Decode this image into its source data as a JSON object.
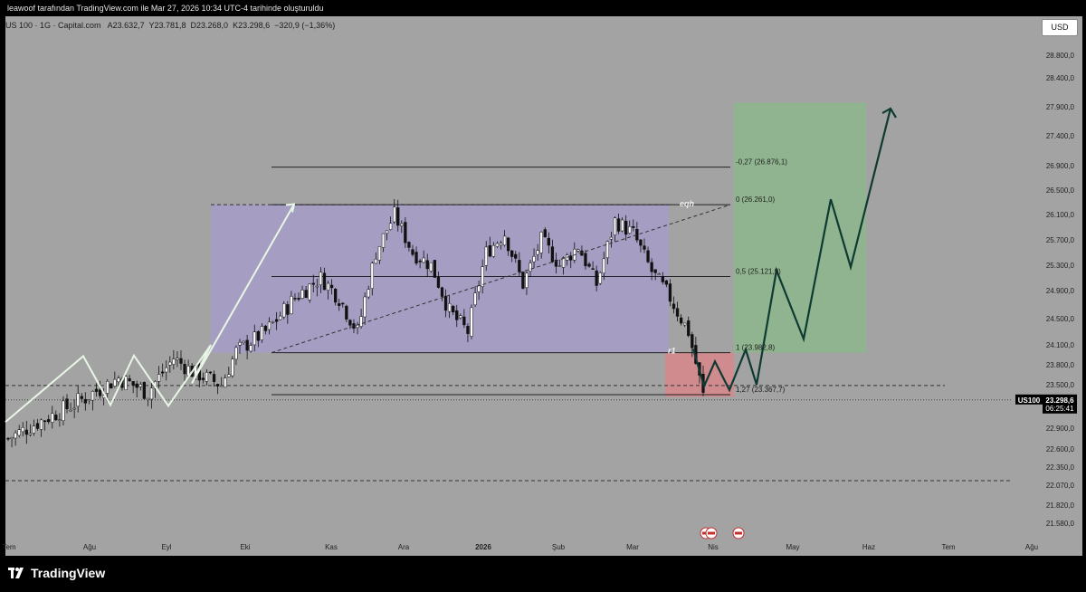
{
  "header": {
    "attribution": "leawoof tarafından TradingView.com ile Mar 27, 2026 10:34 UTC-4 tarihinde oluşturuldu"
  },
  "legend": {
    "symbol": "US 100 · 1G · Capital.com",
    "open": "A23.632,7",
    "high": "Y23.781,8",
    "low": "D23.268,0",
    "close": "K23.298,6",
    "change": "−320,9 (−1,36%)"
  },
  "currency_button": "USD",
  "price_label": {
    "symbol": "US100",
    "price": "23.298,6",
    "countdown": "06:25:41"
  },
  "footer_logo": "TradingView",
  "colors": {
    "background": "#a3a3a3",
    "range_box": "#a59ec2",
    "target_zone": "#8fb48f",
    "stop_zone": "#cf8b8e",
    "projection": "#0e3a32",
    "past_zigzag": "#e8f6e6"
  },
  "chart_data": {
    "type": "candlestick",
    "timeframe": "1G",
    "x_labels": [
      "Tem",
      "Ağu",
      "Eyl",
      "Eki",
      "Kas",
      "Ara",
      "2026",
      "Şub",
      "Mar",
      "Nis",
      "May",
      "Haz",
      "Tem",
      "Ağu"
    ],
    "y_ticks": [
      "28.800,0",
      "28.400,0",
      "27.900,0",
      "27.400,0",
      "26.900,0",
      "26.500,0",
      "26.100,0",
      "25.700,0",
      "25.300,0",
      "24.900,0",
      "24.500,0",
      "24.100,0",
      "23.800,0",
      "23.500,0",
      "23.200,0",
      "22.900,0",
      "22.600,0",
      "22.350,0",
      "22.070,0",
      "21.820,0",
      "21.580,0"
    ],
    "last_price": 23298.6,
    "fibonacci_levels": [
      {
        "ratio": "-0,27",
        "value": 26876.1,
        "label": "-0,27 (26.876,1)"
      },
      {
        "ratio": "0",
        "value": 26261.0,
        "label": "0 (26.261,0)"
      },
      {
        "ratio": "0,5",
        "value": 25121.9,
        "label": "0,5 (25.121,9)"
      },
      {
        "ratio": "1",
        "value": 23982.8,
        "label": "1 (23.982,8)"
      },
      {
        "ratio": "1,27",
        "value": 23367.7,
        "label": "1,27 (23.367,7)"
      }
    ],
    "annotations": [
      "eqh",
      "r1"
    ],
    "range_box": {
      "low": 23982.8,
      "high": 26261.0
    },
    "target_zone": {
      "low": 23982.8,
      "high": 27970.0
    },
    "stop_zone": {
      "low": 23340.0,
      "high": 23982.8
    },
    "dashed_levels": [
      23490.0,
      22140.0
    ],
    "projection_path": [
      24040,
      23480,
      23850,
      23430,
      24030,
      23500,
      25220,
      24190,
      26350,
      25270,
      27870
    ],
    "past_zigzag": [
      22990,
      23930,
      23230,
      23940,
      23220,
      24100,
      23520,
      26270
    ],
    "candles": []
  }
}
